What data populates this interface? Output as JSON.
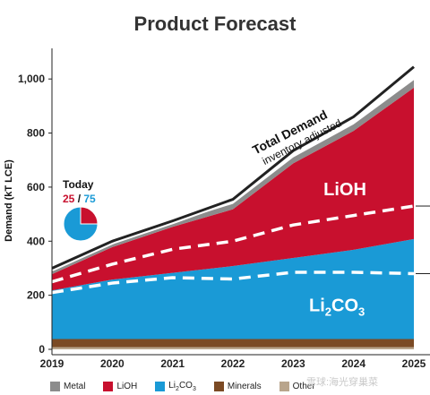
{
  "title": "Product Forecast",
  "colors": {
    "metal": "#8c8c8c",
    "lioh": "#c8102e",
    "li2co3": "#1a9ad6",
    "minerals": "#7b4a24",
    "other": "#b9a58c",
    "total_line": "#222222"
  },
  "annotations": {
    "total_demand": "Total Demand",
    "inventory": "inventory adjusted",
    "today": "Today",
    "today_lioh": "25",
    "today_sep": "/",
    "today_li2co3": "75",
    "lioh_label": "LiOH",
    "li2co3_main": "Li",
    "li2co3_sub1": "2",
    "li2co3_mid": "CO",
    "li2co3_sub2": "3"
  },
  "watermark": "雪球:海光穿巢菜",
  "legend": [
    {
      "key": "metal",
      "label": "Metal"
    },
    {
      "key": "lioh",
      "label": "LiOH"
    },
    {
      "key": "li2co3",
      "label": "Li",
      "sub": "2",
      "tail": "CO",
      "sub2": "3"
    },
    {
      "key": "minerals",
      "label": "Minerals"
    },
    {
      "key": "other",
      "label": "Other"
    }
  ],
  "chart_data": {
    "type": "area",
    "title": "Product Forecast",
    "xlabel": "",
    "ylabel": "Demand (kT LCE)",
    "x": [
      "2019",
      "2020",
      "2021",
      "2022",
      "2023",
      "2024",
      "2025"
    ],
    "y_ticks": [
      "0",
      "200",
      "400",
      "600",
      "800",
      "1,000"
    ],
    "ylim": [
      0,
      1100
    ],
    "stacked": true,
    "series": [
      {
        "name": "Other",
        "key": "other",
        "values": [
          8,
          8,
          8,
          8,
          8,
          8,
          8
        ]
      },
      {
        "name": "Minerals",
        "key": "minerals",
        "values": [
          30,
          30,
          30,
          30,
          30,
          30,
          30
        ]
      },
      {
        "name": "Li2CO3",
        "key": "li2co3",
        "values": [
          180,
          220,
          245,
          270,
          300,
          330,
          370
        ]
      },
      {
        "name": "LiOH",
        "key": "lioh",
        "values": [
          60,
          120,
          170,
          210,
          350,
          440,
          560
        ]
      },
      {
        "name": "Metal",
        "key": "metal",
        "values": [
          12,
          14,
          16,
          20,
          22,
          24,
          28
        ]
      }
    ],
    "total_demand_line": [
      300,
      400,
      475,
      555,
      735,
      860,
      1045
    ],
    "dashed_lines": [
      {
        "values": [
          210,
          245,
          265,
          260,
          285,
          285,
          280
        ]
      },
      {
        "values": [
          250,
          315,
          370,
          400,
          460,
          495,
          530
        ]
      }
    ],
    "today_pie": {
      "lioh": 25,
      "li2co3": 75
    }
  }
}
